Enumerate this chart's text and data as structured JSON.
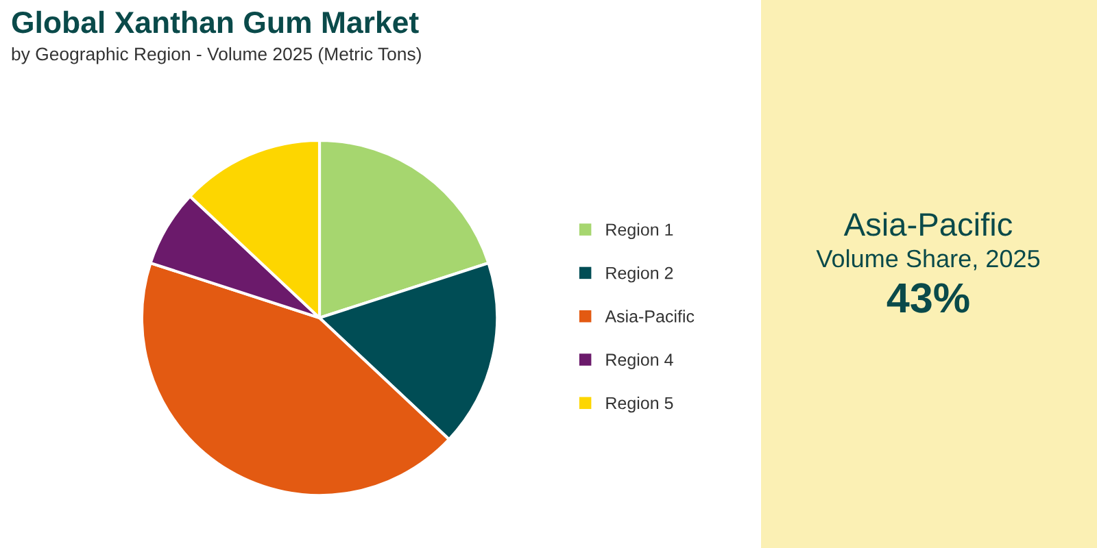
{
  "chart_data": {
    "type": "pie",
    "title": "Global Xanthan Gum Market",
    "subtitle": "by Geographic Region - Volume 2025 (Metric Tons)",
    "categories": [
      "Region 1",
      "Region 2",
      "Asia-Pacific",
      "Region 4",
      "Region 5"
    ],
    "values": [
      20,
      17,
      43,
      7,
      13
    ],
    "colors": [
      "#a6d66f",
      "#004d55",
      "#e35a12",
      "#6b1a6b",
      "#fdd600"
    ],
    "legend": "right",
    "annotations": [
      "Asia-Pacific",
      "Volume Share, 2025",
      "43%"
    ]
  }
}
